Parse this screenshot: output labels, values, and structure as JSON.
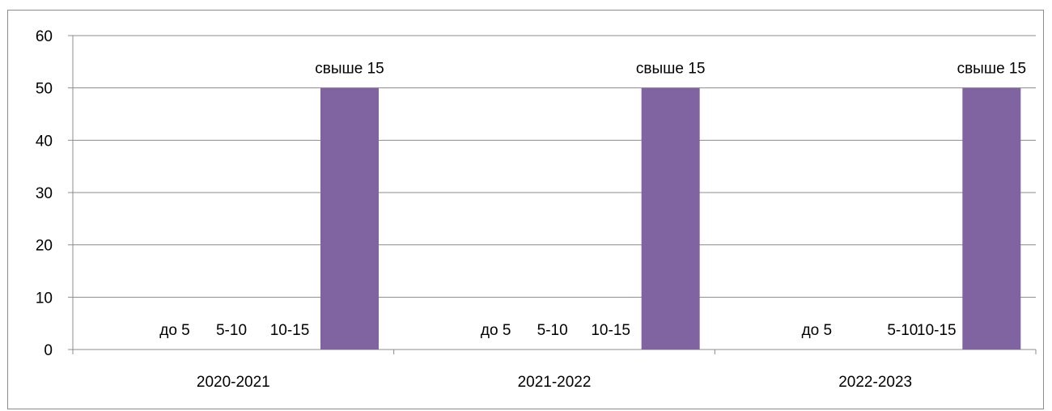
{
  "chart_data": {
    "type": "bar",
    "categories": [
      "2020-2021",
      "2021-2022",
      "2022-2023"
    ],
    "series": [
      {
        "name": "до 5",
        "values": [
          0,
          0,
          0
        ],
        "color": "#4F81BD"
      },
      {
        "name": "5-10",
        "values": [
          0,
          0,
          0
        ],
        "color": "#C0504D"
      },
      {
        "name": "10-15",
        "values": [
          0,
          0,
          0
        ],
        "color": "#9BBB59"
      },
      {
        "name": "свыше 15",
        "values": [
          50,
          50,
          50
        ],
        "color": "#8064A2"
      }
    ],
    "ylim": [
      0,
      60
    ],
    "yticks": [
      "0",
      "10",
      "20",
      "30",
      "40",
      "50",
      "60"
    ],
    "grid": true,
    "legend": "none",
    "data_labels": "series-name"
  }
}
